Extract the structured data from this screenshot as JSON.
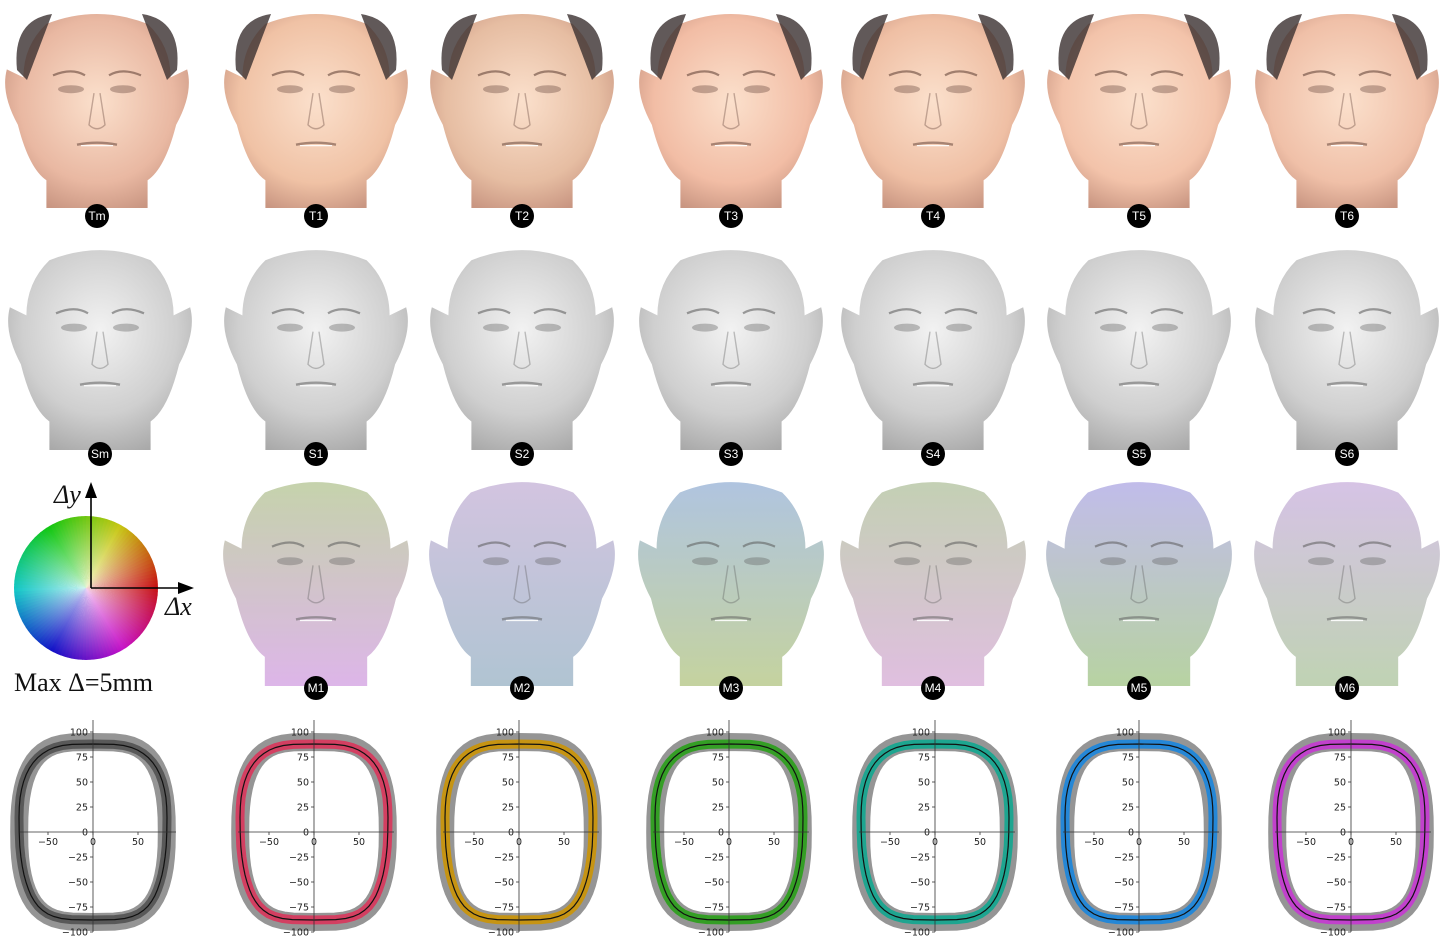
{
  "texture_row": {
    "labels": [
      "Tm",
      "T1",
      "T2",
      "T3",
      "T4",
      "T5",
      "T6"
    ],
    "skin_colors": [
      "#e9b8a2",
      "#f0c2a5",
      "#e6bda2",
      "#f2bda5",
      "#efbfa4",
      "#f3c3aa",
      "#f0c0a8"
    ]
  },
  "shape_row": {
    "labels": [
      "Sm",
      "S1",
      "S2",
      "S3",
      "S4",
      "S5",
      "S6"
    ]
  },
  "motion_row": {
    "labels": [
      "M1",
      "M2",
      "M3",
      "M4",
      "M5",
      "M6"
    ],
    "tints": [
      [
        "#b9c99a",
        "#d6a6e4"
      ],
      [
        "#c9b7d9",
        "#9fb8c9"
      ],
      [
        "#9fb8d9",
        "#b8c98a"
      ],
      [
        "#b7c6a4",
        "#d9b1d9"
      ],
      [
        "#b4aee6",
        "#a8c98e"
      ],
      [
        "#cdb6e0",
        "#b2c9a3"
      ]
    ]
  },
  "legend": {
    "delta_y_label": "Δy",
    "delta_x_label": "Δx",
    "max_label": "Max Δ=5mm"
  },
  "outline_row": {
    "colors": [
      "#555555",
      "#d63a5e",
      "#c8940c",
      "#2e9e1f",
      "#17a58f",
      "#1f86d9",
      "#c33ccf"
    ],
    "yticks": [
      "100",
      "75",
      "50",
      "25",
      "0",
      "−25",
      "−50",
      "−75",
      "−100"
    ],
    "xticks": [
      "−50",
      "0",
      "50"
    ]
  },
  "chart_data": [
    {
      "type": "line",
      "series": [
        {
          "color": "#555555"
        }
      ],
      "xlim": [
        -80,
        80
      ],
      "ylim": [
        -100,
        100
      ]
    },
    {
      "type": "line",
      "series": [
        {
          "color": "#d63a5e"
        }
      ],
      "xlim": [
        -80,
        80
      ],
      "ylim": [
        -100,
        100
      ]
    },
    {
      "type": "line",
      "series": [
        {
          "color": "#c8940c"
        }
      ],
      "xlim": [
        -80,
        80
      ],
      "ylim": [
        -100,
        100
      ]
    },
    {
      "type": "line",
      "series": [
        {
          "color": "#2e9e1f"
        }
      ],
      "xlim": [
        -80,
        80
      ],
      "ylim": [
        -100,
        100
      ]
    },
    {
      "type": "line",
      "series": [
        {
          "color": "#17a58f"
        }
      ],
      "xlim": [
        -80,
        80
      ],
      "ylim": [
        -100,
        100
      ]
    },
    {
      "type": "line",
      "series": [
        {
          "color": "#1f86d9"
        }
      ],
      "xlim": [
        -80,
        80
      ],
      "ylim": [
        -100,
        100
      ]
    },
    {
      "type": "line",
      "series": [
        {
          "color": "#c33ccf"
        }
      ],
      "xlim": [
        -80,
        80
      ],
      "ylim": [
        -100,
        100
      ]
    }
  ]
}
